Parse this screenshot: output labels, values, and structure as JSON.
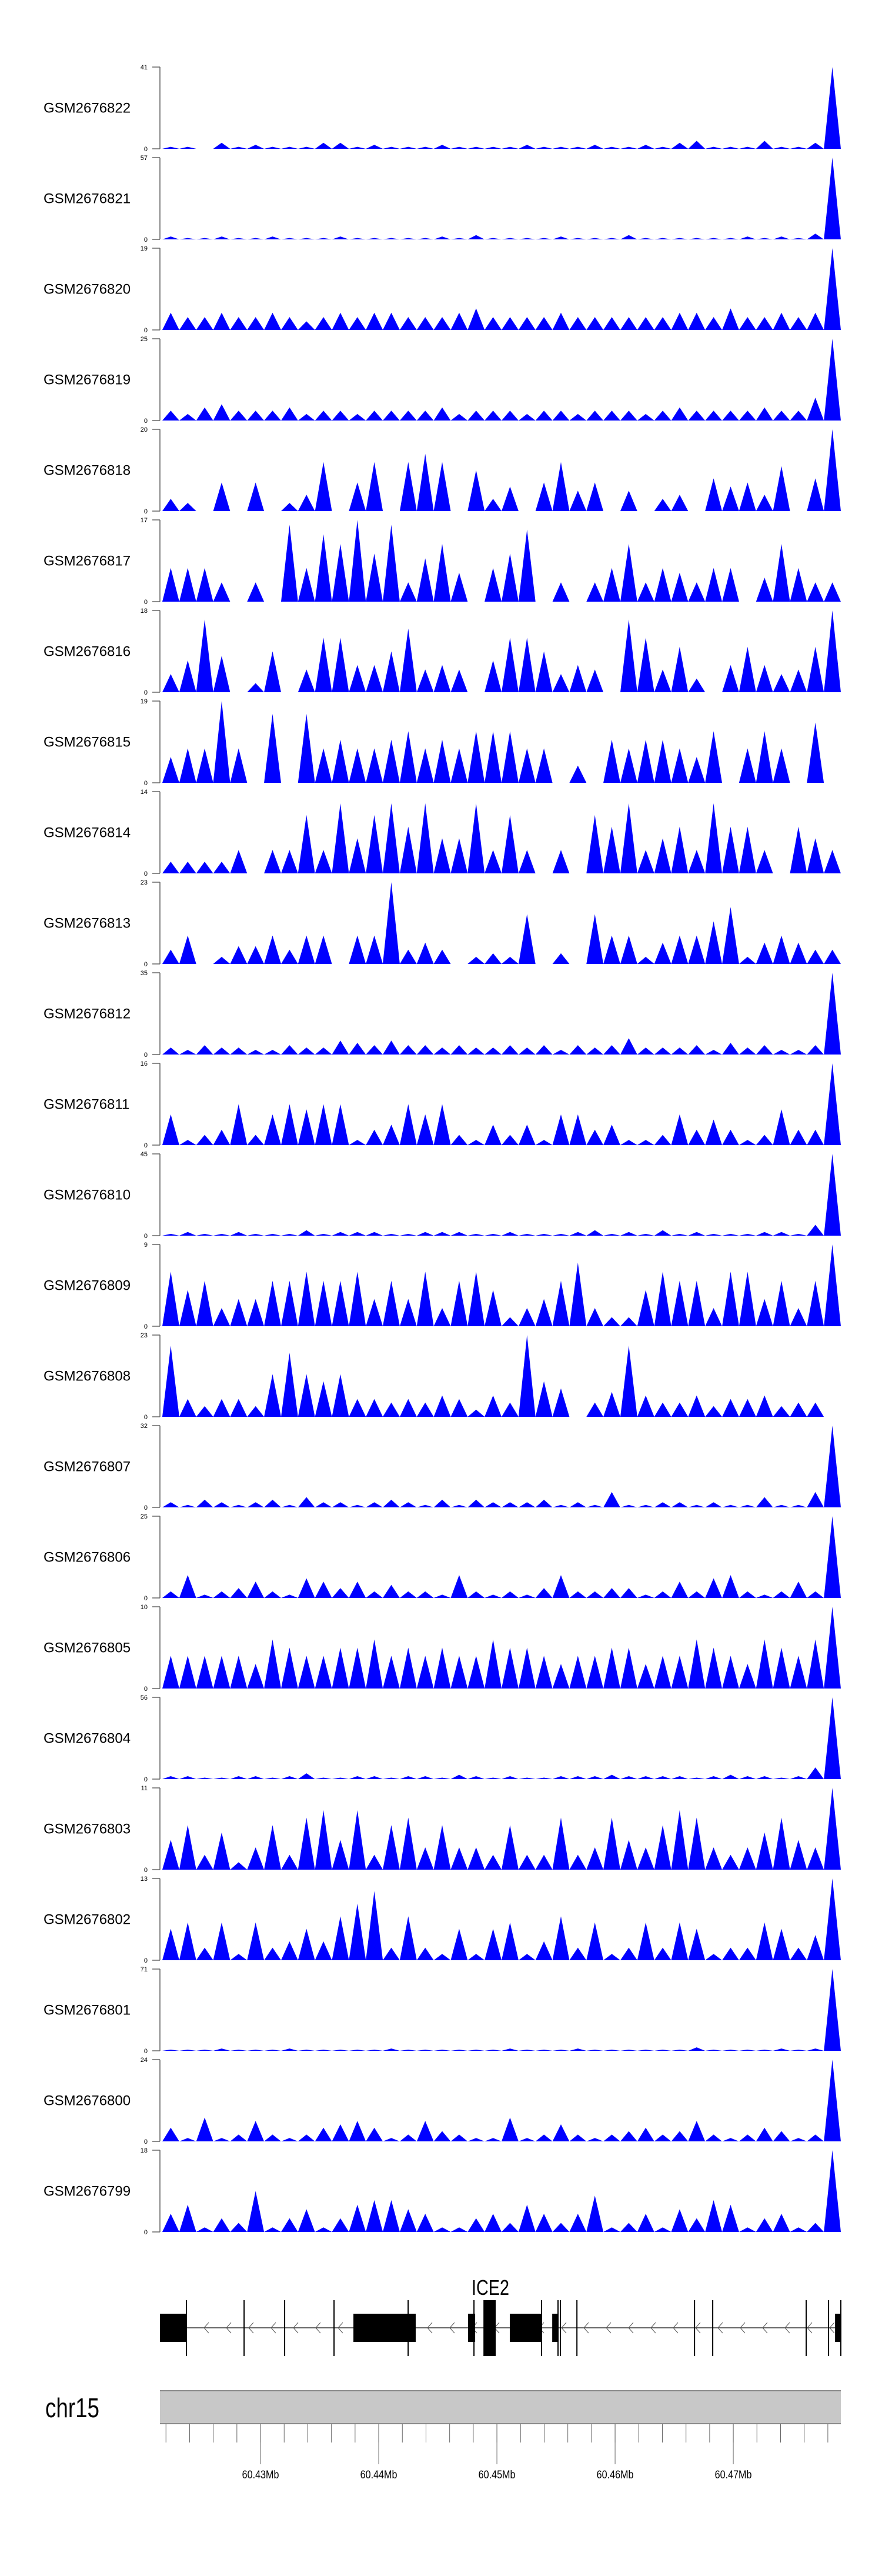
{
  "chart_data": {
    "type": "area",
    "title": "",
    "xlabel": "",
    "chromosome": "chr15",
    "xlim": [
      60.42149,
      60.4791
    ],
    "fill_color": "#0000FF",
    "x_ticks_major": [
      "60.43Mb",
      "60.44Mb",
      "60.45Mb",
      "60.46Mb",
      "60.47Mb"
    ],
    "x_ticks_major_values": [
      60.43,
      60.44,
      60.45,
      60.46,
      60.47
    ],
    "x_ticks_minor_step": 0.002,
    "x_ticks_minor_range": [
      60.422,
      60.478
    ],
    "bins": 40,
    "series": [
      {
        "name": "GSM2676822",
        "ymax": 41,
        "values": [
          1,
          1,
          0,
          3,
          1,
          2,
          1,
          1,
          1,
          3,
          3,
          1,
          2,
          1,
          1,
          1,
          2,
          1,
          1,
          1,
          1,
          2,
          1,
          1,
          1,
          2,
          1,
          1,
          2,
          1,
          3,
          4,
          1,
          1,
          1,
          4,
          1,
          1,
          3,
          41
        ]
      },
      {
        "name": "GSM2676821",
        "ymax": 57,
        "values": [
          2,
          1,
          1,
          2,
          1,
          1,
          2,
          1,
          1,
          1,
          2,
          1,
          1,
          1,
          1,
          1,
          2,
          1,
          3,
          1,
          1,
          1,
          1,
          2,
          1,
          1,
          1,
          3,
          1,
          1,
          1,
          1,
          1,
          1,
          2,
          1,
          2,
          1,
          4,
          57
        ]
      },
      {
        "name": "GSM2676820",
        "ymax": 19,
        "values": [
          4,
          3,
          3,
          4,
          3,
          3,
          4,
          3,
          2,
          3,
          4,
          3,
          4,
          4,
          3,
          3,
          3,
          4,
          5,
          3,
          3,
          3,
          3,
          4,
          3,
          3,
          3,
          3,
          3,
          3,
          4,
          4,
          3,
          5,
          3,
          3,
          4,
          3,
          4,
          19
        ]
      },
      {
        "name": "GSM2676819",
        "ymax": 25,
        "values": [
          3,
          2,
          4,
          5,
          3,
          3,
          3,
          4,
          2,
          3,
          3,
          2,
          3,
          3,
          3,
          3,
          4,
          2,
          3,
          3,
          3,
          2,
          3,
          3,
          2,
          3,
          3,
          3,
          2,
          3,
          4,
          3,
          3,
          3,
          3,
          4,
          3,
          3,
          7,
          25
        ]
      },
      {
        "name": "GSM2676818",
        "ymax": 20,
        "values": [
          3,
          2,
          0,
          7,
          0,
          7,
          0,
          2,
          4,
          12,
          0,
          7,
          12,
          0,
          12,
          14,
          12,
          0,
          10,
          3,
          6,
          0,
          7,
          12,
          5,
          7,
          0,
          5,
          0,
          3,
          4,
          0,
          8,
          6,
          7,
          4,
          11,
          0,
          8,
          20
        ]
      },
      {
        "name": "GSM2676817",
        "ymax": 17,
        "values": [
          7,
          7,
          7,
          4,
          0,
          4,
          0,
          16,
          7,
          14,
          12,
          17,
          10,
          16,
          4,
          9,
          12,
          6,
          0,
          7,
          10,
          15,
          0,
          4,
          0,
          4,
          7,
          12,
          4,
          7,
          6,
          4,
          7,
          7,
          0,
          5,
          12,
          7,
          4,
          4
        ]
      },
      {
        "name": "GSM2676816",
        "ymax": 18,
        "values": [
          4,
          7,
          16,
          8,
          0,
          2,
          9,
          0,
          5,
          12,
          12,
          6,
          6,
          9,
          14,
          5,
          6,
          5,
          0,
          7,
          12,
          12,
          9,
          4,
          6,
          5,
          0,
          16,
          12,
          5,
          10,
          3,
          0,
          6,
          10,
          6,
          4,
          5,
          10,
          18
        ]
      },
      {
        "name": "GSM2676815",
        "ymax": 19,
        "values": [
          6,
          8,
          8,
          19,
          8,
          0,
          16,
          0,
          16,
          8,
          10,
          8,
          8,
          10,
          12,
          8,
          10,
          8,
          12,
          12,
          12,
          8,
          8,
          0,
          4,
          0,
          10,
          8,
          10,
          10,
          8,
          6,
          12,
          0,
          8,
          12,
          8,
          0,
          14,
          0
        ]
      },
      {
        "name": "GSM2676814",
        "ymax": 14,
        "values": [
          2,
          2,
          2,
          2,
          4,
          0,
          4,
          4,
          10,
          4,
          12,
          6,
          10,
          12,
          8,
          12,
          6,
          6,
          12,
          4,
          10,
          4,
          0,
          4,
          0,
          10,
          8,
          12,
          4,
          6,
          8,
          4,
          12,
          8,
          8,
          4,
          0,
          8,
          6,
          4
        ]
      },
      {
        "name": "GSM2676813",
        "ymax": 23,
        "values": [
          4,
          8,
          0,
          2,
          5,
          5,
          8,
          4,
          8,
          8,
          0,
          8,
          8,
          23,
          4,
          6,
          4,
          0,
          2,
          3,
          2,
          14,
          0,
          3,
          0,
          14,
          8,
          8,
          2,
          6,
          8,
          8,
          12,
          16,
          2,
          6,
          8,
          6,
          4,
          4
        ]
      },
      {
        "name": "GSM2676812",
        "ymax": 35,
        "values": [
          3,
          2,
          4,
          3,
          3,
          2,
          2,
          4,
          3,
          3,
          6,
          5,
          4,
          6,
          4,
          4,
          3,
          4,
          3,
          3,
          4,
          3,
          4,
          2,
          4,
          3,
          4,
          7,
          3,
          3,
          3,
          4,
          2,
          5,
          3,
          4,
          2,
          2,
          4,
          35
        ]
      },
      {
        "name": "GSM2676811",
        "ymax": 16,
        "values": [
          6,
          1,
          2,
          3,
          8,
          2,
          6,
          8,
          7,
          8,
          8,
          1,
          3,
          4,
          8,
          6,
          8,
          2,
          1,
          4,
          2,
          4,
          1,
          6,
          6,
          3,
          4,
          1,
          1,
          2,
          6,
          3,
          5,
          3,
          1,
          2,
          7,
          3,
          3,
          16
        ]
      },
      {
        "name": "GSM2676810",
        "ymax": 45,
        "values": [
          1,
          2,
          1,
          1,
          2,
          1,
          1,
          1,
          3,
          1,
          2,
          2,
          2,
          1,
          1,
          2,
          2,
          2,
          1,
          1,
          2,
          1,
          1,
          1,
          2,
          3,
          1,
          2,
          1,
          3,
          1,
          2,
          1,
          1,
          1,
          2,
          2,
          1,
          6,
          45
        ]
      },
      {
        "name": "GSM2676809",
        "ymax": 9,
        "values": [
          6,
          4,
          5,
          2,
          3,
          3,
          5,
          5,
          6,
          5,
          5,
          6,
          3,
          5,
          3,
          6,
          2,
          5,
          6,
          4,
          1,
          2,
          3,
          5,
          7,
          2,
          1,
          1,
          4,
          6,
          5,
          5,
          2,
          6,
          6,
          3,
          5,
          2,
          5,
          9
        ]
      },
      {
        "name": "GSM2676808",
        "ymax": 23,
        "values": [
          20,
          5,
          3,
          5,
          5,
          3,
          12,
          18,
          12,
          10,
          12,
          5,
          5,
          4,
          5,
          4,
          6,
          5,
          2,
          6,
          4,
          23,
          10,
          8,
          0,
          4,
          7,
          20,
          6,
          4,
          4,
          6,
          3,
          5,
          5,
          6,
          3,
          4,
          4,
          0
        ]
      },
      {
        "name": "GSM2676807",
        "ymax": 32,
        "values": [
          2,
          1,
          3,
          2,
          1,
          2,
          3,
          1,
          4,
          2,
          2,
          1,
          2,
          3,
          2,
          1,
          3,
          1,
          3,
          2,
          2,
          2,
          3,
          1,
          2,
          1,
          6,
          1,
          1,
          2,
          2,
          1,
          2,
          1,
          1,
          4,
          1,
          1,
          6,
          32
        ]
      },
      {
        "name": "GSM2676806",
        "ymax": 25,
        "values": [
          2,
          7,
          1,
          2,
          3,
          5,
          2,
          1,
          6,
          5,
          3,
          5,
          2,
          4,
          2,
          2,
          1,
          7,
          2,
          1,
          2,
          1,
          3,
          7,
          2,
          2,
          3,
          3,
          1,
          2,
          5,
          2,
          6,
          7,
          2,
          1,
          2,
          5,
          2,
          25
        ]
      },
      {
        "name": "GSM2676805",
        "ymax": 10,
        "values": [
          4,
          4,
          4,
          4,
          4,
          3,
          6,
          5,
          4,
          4,
          5,
          5,
          6,
          4,
          5,
          4,
          5,
          4,
          4,
          6,
          5,
          5,
          4,
          3,
          4,
          4,
          5,
          5,
          3,
          4,
          4,
          6,
          5,
          4,
          3,
          6,
          5,
          4,
          6,
          10
        ]
      },
      {
        "name": "GSM2676804",
        "ymax": 56,
        "values": [
          2,
          2,
          1,
          1,
          2,
          2,
          1,
          2,
          4,
          1,
          1,
          2,
          2,
          1,
          2,
          2,
          1,
          3,
          2,
          1,
          2,
          1,
          1,
          2,
          2,
          2,
          3,
          2,
          2,
          2,
          2,
          1,
          2,
          3,
          2,
          2,
          1,
          2,
          8,
          56
        ]
      },
      {
        "name": "GSM2676803",
        "ymax": 11,
        "values": [
          4,
          6,
          2,
          5,
          1,
          3,
          6,
          2,
          7,
          8,
          4,
          8,
          2,
          6,
          7,
          3,
          6,
          3,
          3,
          2,
          6,
          2,
          2,
          7,
          2,
          3,
          7,
          4,
          3,
          6,
          8,
          7,
          3,
          2,
          3,
          5,
          7,
          4,
          3,
          11
        ]
      },
      {
        "name": "GSM2676802",
        "ymax": 13,
        "values": [
          5,
          6,
          2,
          6,
          1,
          6,
          2,
          3,
          5,
          3,
          7,
          9,
          11,
          2,
          7,
          2,
          1,
          5,
          1,
          5,
          6,
          1,
          3,
          7,
          2,
          6,
          1,
          2,
          6,
          2,
          6,
          5,
          1,
          2,
          2,
          6,
          5,
          2,
          4,
          13
        ]
      },
      {
        "name": "GSM2676801",
        "ymax": 71,
        "values": [
          1,
          1,
          1,
          2,
          1,
          1,
          1,
          2,
          1,
          1,
          1,
          1,
          1,
          2,
          1,
          1,
          1,
          1,
          1,
          1,
          2,
          1,
          1,
          1,
          2,
          1,
          1,
          1,
          1,
          1,
          1,
          3,
          1,
          1,
          1,
          1,
          2,
          1,
          2,
          71
        ]
      },
      {
        "name": "GSM2676800",
        "ymax": 24,
        "values": [
          4,
          1,
          7,
          1,
          2,
          6,
          2,
          1,
          2,
          4,
          5,
          6,
          4,
          1,
          2,
          6,
          3,
          2,
          1,
          1,
          7,
          1,
          2,
          5,
          2,
          1,
          2,
          3,
          4,
          2,
          3,
          6,
          2,
          1,
          2,
          4,
          3,
          1,
          2,
          24
        ]
      },
      {
        "name": "GSM2676799",
        "ymax": 18,
        "values": [
          4,
          6,
          1,
          3,
          2,
          9,
          1,
          3,
          5,
          1,
          3,
          6,
          7,
          7,
          5,
          4,
          1,
          1,
          3,
          4,
          2,
          6,
          4,
          2,
          4,
          8,
          1,
          2,
          4,
          1,
          5,
          3,
          7,
          6,
          1,
          3,
          4,
          1,
          2,
          18
        ]
      }
    ],
    "ymin_label": "0",
    "gene": {
      "name": "ICE2",
      "strand": "-",
      "start": 60.42149,
      "end": 60.4791,
      "exon_boxes": [
        [
          60.42149,
          60.42373
        ],
        [
          60.43786,
          60.44313
        ],
        [
          60.44756,
          60.44816
        ],
        [
          60.45109,
          60.45378
        ],
        [
          60.45468,
          60.45517
        ],
        [
          60.47861,
          60.4791
        ]
      ],
      "tall_boxes": [
        [
          60.44886,
          60.4499
        ]
      ],
      "exon_lines": [
        60.42373,
        60.42861,
        60.43204,
        60.43622,
        60.44249,
        60.44806,
        60.45378,
        60.45517,
        60.45537,
        60.45677,
        60.46672,
        60.46826,
        60.47617,
        60.47806,
        60.4791
      ]
    }
  }
}
